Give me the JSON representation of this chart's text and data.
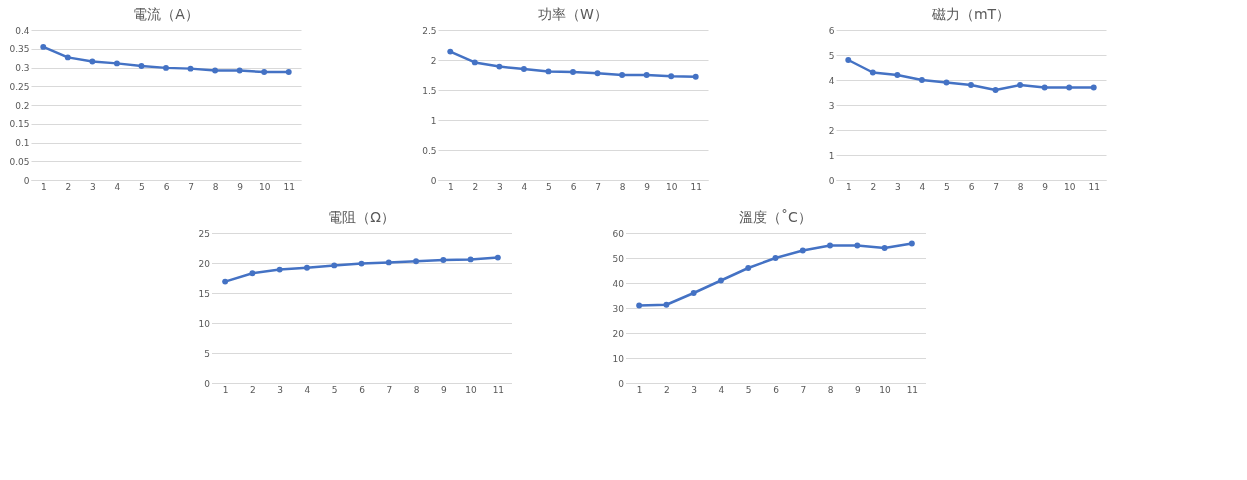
{
  "chart_data": [
    {
      "type": "line",
      "title": "電流（A）",
      "categories": [
        "1",
        "2",
        "3",
        "4",
        "5",
        "6",
        "7",
        "8",
        "9",
        "10",
        "11"
      ],
      "series": [
        {
          "color": "#4472c4",
          "values": [
            0.355,
            0.327,
            0.316,
            0.311,
            0.304,
            0.299,
            0.297,
            0.292,
            0.292,
            0.288,
            0.288
          ]
        }
      ],
      "ylim": [
        0,
        0.4
      ],
      "yticks": [
        0,
        0.05,
        0.1,
        0.15,
        0.2,
        0.25,
        0.3,
        0.35,
        0.4
      ],
      "grid": "y",
      "marker": "circle"
    },
    {
      "type": "line",
      "title": "功率（W）",
      "categories": [
        "1",
        "2",
        "3",
        "4",
        "5",
        "6",
        "7",
        "8",
        "9",
        "10",
        "11"
      ],
      "series": [
        {
          "color": "#4472c4",
          "values": [
            2.14,
            1.96,
            1.89,
            1.85,
            1.81,
            1.8,
            1.78,
            1.75,
            1.75,
            1.73,
            1.72
          ]
        }
      ],
      "ylim": [
        0,
        2.5
      ],
      "yticks": [
        0,
        0.5,
        1,
        1.5,
        2,
        2.5
      ],
      "grid": "y",
      "marker": "circle"
    },
    {
      "type": "line",
      "title": "磁力（mT）",
      "categories": [
        "1",
        "2",
        "3",
        "4",
        "5",
        "6",
        "7",
        "8",
        "9",
        "10",
        "11"
      ],
      "series": [
        {
          "color": "#4472c4",
          "values": [
            4.8,
            4.3,
            4.2,
            4.0,
            3.9,
            3.8,
            3.6,
            3.8,
            3.7,
            3.7,
            3.7
          ]
        }
      ],
      "ylim": [
        0,
        6
      ],
      "yticks": [
        0,
        1,
        2,
        3,
        4,
        5,
        6
      ],
      "grid": "y",
      "marker": "circle"
    },
    {
      "type": "line",
      "title": "電阻（Ω）",
      "categories": [
        "1",
        "2",
        "3",
        "4",
        "5",
        "6",
        "7",
        "8",
        "9",
        "10",
        "11"
      ],
      "series": [
        {
          "color": "#4472c4",
          "values": [
            16.9,
            18.3,
            18.9,
            19.2,
            19.6,
            19.9,
            20.1,
            20.3,
            20.5,
            20.6,
            20.9
          ]
        }
      ],
      "ylim": [
        0,
        25
      ],
      "yticks": [
        0,
        5,
        10,
        15,
        20,
        25
      ],
      "grid": "y",
      "marker": "circle"
    },
    {
      "type": "line",
      "title": "溫度（˚C）",
      "categories": [
        "1",
        "2",
        "3",
        "4",
        "5",
        "6",
        "7",
        "8",
        "9",
        "10",
        "11"
      ],
      "series": [
        {
          "color": "#4472c4",
          "values": [
            31,
            31.3,
            36,
            41,
            46,
            50,
            53,
            55,
            55,
            54,
            55.8
          ]
        }
      ],
      "ylim": [
        0,
        60
      ],
      "yticks": [
        0,
        10,
        20,
        30,
        40,
        50,
        60
      ],
      "grid": "y",
      "marker": "circle"
    }
  ]
}
